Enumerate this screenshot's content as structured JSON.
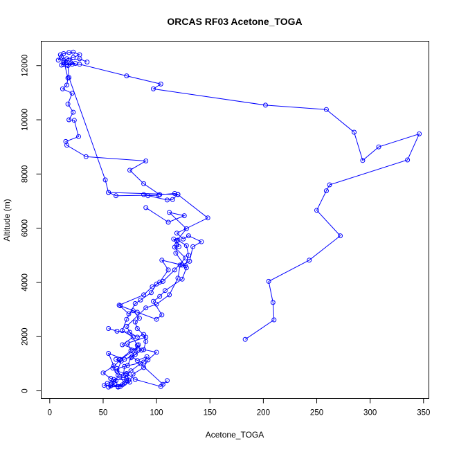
{
  "chart_data": {
    "type": "line",
    "title": "ORCAS RF03 Acetone_TOGA",
    "xlabel": "Acetone_TOGA",
    "ylabel": "Altitude (m)",
    "xlim": [
      -8,
      355
    ],
    "ylim": [
      -280,
      12900
    ],
    "x_ticks": [
      0,
      50,
      100,
      150,
      200,
      250,
      300,
      350
    ],
    "y_ticks": [
      0,
      2000,
      4000,
      6000,
      8000,
      10000,
      12000
    ],
    "grid": false,
    "color": "#0000ff",
    "series": [
      {
        "points": [
          [
            183,
            1900
          ],
          [
            210,
            2620
          ],
          [
            209,
            3260
          ],
          [
            205,
            4040
          ],
          [
            243,
            4820
          ],
          [
            272,
            5720
          ],
          [
            250,
            6660
          ],
          [
            259,
            7380
          ],
          [
            262,
            7600
          ],
          [
            335,
            8520
          ],
          [
            346,
            9480
          ],
          [
            308,
            9000
          ],
          [
            293,
            8500
          ],
          [
            285,
            9540
          ],
          [
            259,
            10380
          ],
          [
            202,
            10540
          ],
          [
            97,
            11140
          ],
          [
            104,
            11320
          ],
          [
            72,
            11620
          ],
          [
            28,
            12050
          ],
          [
            21,
            12050
          ],
          [
            16,
            12030
          ],
          [
            13,
            12120
          ],
          [
            16,
            12250
          ],
          [
            22,
            12300
          ],
          [
            28,
            12400
          ],
          [
            22,
            12500
          ],
          [
            18,
            12480
          ],
          [
            13,
            12440
          ],
          [
            10,
            12400
          ],
          [
            8,
            12200
          ],
          [
            11,
            12300
          ],
          [
            13,
            12200
          ],
          [
            17,
            11540
          ],
          [
            16,
            11280
          ],
          [
            12,
            11140
          ],
          [
            21,
            10980
          ],
          [
            17,
            10580
          ],
          [
            22,
            10280
          ],
          [
            18,
            10000
          ],
          [
            23,
            9980
          ],
          [
            27,
            9380
          ],
          [
            15,
            9200
          ],
          [
            16,
            9060
          ],
          [
            34,
            8640
          ],
          [
            90,
            8480
          ],
          [
            75,
            8140
          ],
          [
            88,
            7640
          ],
          [
            103,
            7240
          ],
          [
            117,
            7280
          ],
          [
            120,
            7250
          ],
          [
            115,
            7060
          ],
          [
            110,
            7040
          ],
          [
            88,
            7240
          ],
          [
            92,
            7200
          ],
          [
            102,
            7220
          ],
          [
            62,
            7200
          ],
          [
            55,
            7320
          ],
          [
            52,
            7780
          ],
          [
            18,
            11560
          ],
          [
            17,
            12000
          ],
          [
            20,
            12100
          ],
          [
            24,
            12080
          ],
          [
            13,
            12040
          ],
          [
            11,
            12020
          ],
          [
            18,
            12200
          ],
          [
            28,
            12250
          ],
          [
            35,
            12130
          ]
        ]
      },
      {
        "points": [
          [
            55,
            7320
          ],
          [
            120,
            7240
          ],
          [
            148,
            6380
          ],
          [
            119,
            5820
          ],
          [
            125,
            5600
          ],
          [
            130,
            5720
          ],
          [
            142,
            5500
          ],
          [
            134,
            5320
          ],
          [
            131,
            4780
          ],
          [
            124,
            4640
          ],
          [
            105,
            4820
          ],
          [
            111,
            4460
          ],
          [
            103,
            4010
          ],
          [
            96,
            3840
          ],
          [
            88,
            3540
          ],
          [
            65,
            3160
          ],
          [
            74,
            2840
          ],
          [
            78,
            2960
          ],
          [
            84,
            2680
          ],
          [
            80,
            2540
          ],
          [
            82,
            2300
          ],
          [
            90,
            1980
          ],
          [
            73,
            1760
          ],
          [
            76,
            1480
          ],
          [
            66,
            1160
          ],
          [
            59,
            840
          ],
          [
            64,
            580
          ],
          [
            61,
            280
          ],
          [
            55,
            140
          ],
          [
            64,
            160
          ],
          [
            70,
            280
          ],
          [
            66,
            540
          ],
          [
            63,
            820
          ],
          [
            73,
            940
          ],
          [
            76,
            1220
          ],
          [
            86,
            1500
          ],
          [
            82,
            1680
          ],
          [
            72,
            2380
          ],
          [
            90,
            3060
          ],
          [
            100,
            3200
          ],
          [
            112,
            3540
          ],
          [
            120,
            4160
          ],
          [
            122,
            4640
          ],
          [
            127,
            4620
          ],
          [
            130,
            5000
          ],
          [
            128,
            5360
          ],
          [
            120,
            5560
          ],
          [
            116,
            5600
          ],
          [
            119,
            5380
          ],
          [
            118,
            5080
          ],
          [
            128,
            4540
          ],
          [
            124,
            4120
          ],
          [
            108,
            3700
          ],
          [
            103,
            3480
          ],
          [
            97,
            3300
          ],
          [
            105,
            2800
          ],
          [
            100,
            2640
          ],
          [
            82,
            2900
          ],
          [
            66,
            3140
          ]
        ]
      },
      {
        "points": [
          [
            90,
            6760
          ],
          [
            111,
            6220
          ],
          [
            126,
            6460
          ],
          [
            112,
            6580
          ],
          [
            128,
            5980
          ],
          [
            119,
            5540
          ],
          [
            121,
            5320
          ],
          [
            117,
            5300
          ],
          [
            127,
            4900
          ],
          [
            117,
            4460
          ],
          [
            106,
            4040
          ],
          [
            100,
            3940
          ],
          [
            95,
            3620
          ],
          [
            85,
            3350
          ],
          [
            80,
            3220
          ],
          [
            72,
            2640
          ],
          [
            68,
            2220
          ],
          [
            78,
            1980
          ],
          [
            68,
            1700
          ],
          [
            83,
            1500
          ],
          [
            80,
            1340
          ],
          [
            70,
            1160
          ],
          [
            55,
            1380
          ],
          [
            60,
            920
          ],
          [
            50,
            660
          ],
          [
            57,
            460
          ],
          [
            62,
            380
          ],
          [
            54,
            280
          ],
          [
            51,
            200
          ],
          [
            57,
            180
          ],
          [
            66,
            160
          ],
          [
            75,
            320
          ],
          [
            78,
            620
          ],
          [
            88,
            860
          ],
          [
            92,
            1140
          ],
          [
            100,
            1420
          ],
          [
            88,
            1520
          ],
          [
            90,
            1820
          ],
          [
            88,
            2080
          ],
          [
            82,
            1980
          ],
          [
            75,
            2160
          ],
          [
            63,
            2200
          ],
          [
            55,
            2300
          ]
        ]
      },
      {
        "points": [
          [
            65,
            1140
          ],
          [
            78,
            1460
          ],
          [
            83,
            1700
          ],
          [
            77,
            1260
          ],
          [
            82,
            1120
          ],
          [
            91,
            1260
          ],
          [
            88,
            1060
          ],
          [
            70,
            900
          ],
          [
            69,
            560
          ],
          [
            72,
            440
          ],
          [
            72,
            380
          ],
          [
            68,
            220
          ],
          [
            64,
            140
          ],
          [
            58,
            280
          ],
          [
            60,
            420
          ],
          [
            74,
            400
          ],
          [
            72,
            600
          ],
          [
            76,
            740
          ],
          [
            85,
            1000
          ],
          [
            106,
            240
          ],
          [
            110,
            380
          ],
          [
            104,
            160
          ],
          [
            80,
            420
          ],
          [
            72,
            640
          ],
          [
            63,
            720
          ],
          [
            67,
            1100
          ],
          [
            62,
            1160
          ]
        ]
      }
    ]
  }
}
